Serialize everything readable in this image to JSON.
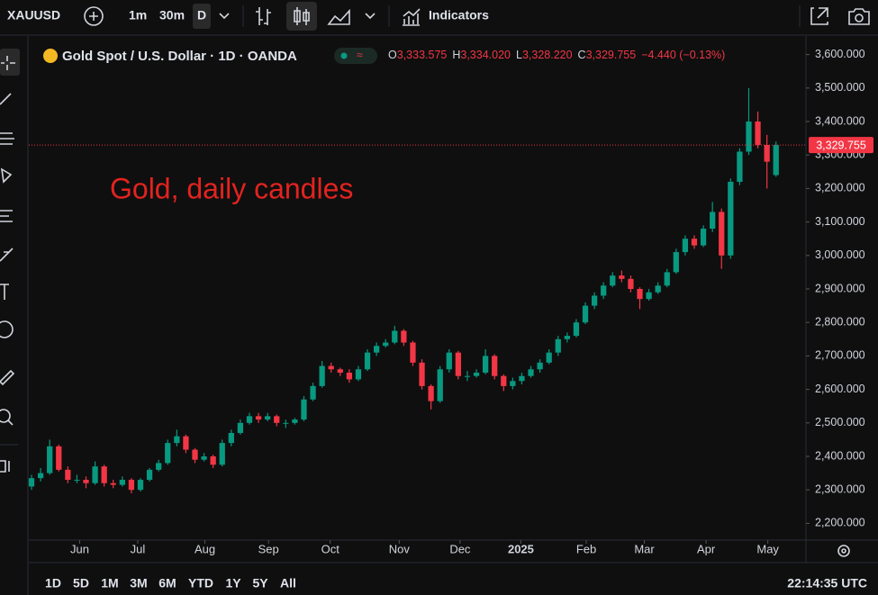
{
  "toolbar": {
    "symbol": "XAUUSD",
    "intervals": [
      "1m",
      "30m",
      "D"
    ],
    "indicators": "Indicators"
  },
  "legend": {
    "title": "Gold Spot / U.S. Dollar · 1D · OANDA",
    "ohlc": [
      {
        "key": "O",
        "value": "3,333.575"
      },
      {
        "key": "H",
        "value": "3,334.020"
      },
      {
        "key": "L",
        "value": "3,328.220"
      },
      {
        "key": "C",
        "value": "3,329.755"
      }
    ],
    "change": "−4.440 (−0.13%)"
  },
  "chart_data": {
    "type": "candlestick",
    "annotation": "Gold, daily candles",
    "up_color": "#089981",
    "down_color": "#f23645",
    "annotation_color": "#e3231f",
    "xlim": [
      -0.3,
      85.3
    ],
    "xticks": [
      {
        "value": 5.3,
        "label": "Jun"
      },
      {
        "value": 11.7,
        "label": "Jul"
      },
      {
        "value": 19.1,
        "label": "Aug"
      },
      {
        "value": 26.1,
        "label": "Sep"
      },
      {
        "value": 32.9,
        "label": "Oct"
      },
      {
        "value": 40.5,
        "label": "Nov"
      },
      {
        "value": 47.2,
        "label": "Dec"
      },
      {
        "value": 53.9,
        "label": "2025"
      },
      {
        "value": 61.1,
        "label": "Feb"
      },
      {
        "value": 67.5,
        "label": "Mar"
      },
      {
        "value": 74.3,
        "label": "Apr"
      },
      {
        "value": 81.1,
        "label": "May"
      }
    ],
    "ylim": [
      2150,
      3650
    ],
    "yticks": [
      {
        "value": 2200,
        "label": "2,200.000"
      },
      {
        "value": 2300,
        "label": "2,300.000"
      },
      {
        "value": 2400,
        "label": "2,400.000"
      },
      {
        "value": 2500,
        "label": "2,500.000"
      },
      {
        "value": 2600,
        "label": "2,600.000"
      },
      {
        "value": 2700,
        "label": "2,700.000"
      },
      {
        "value": 2800,
        "label": "2,800.000"
      },
      {
        "value": 2900,
        "label": "2,900.000"
      },
      {
        "value": 3000,
        "label": "3,000.000"
      },
      {
        "value": 3100,
        "label": "3,100.000"
      },
      {
        "value": 3200,
        "label": "3,200.000"
      },
      {
        "value": 3300,
        "label": "3,300.000"
      },
      {
        "value": 3400,
        "label": "3,400.000"
      },
      {
        "value": 3500,
        "label": "3,500.000"
      },
      {
        "value": 3600,
        "label": "3,600.000"
      }
    ],
    "last_price": {
      "value": 3329.755,
      "label": "3,329.755"
    },
    "open": [
      2310,
      2335,
      2350,
      2430,
      2360,
      2330,
      2330,
      2320,
      2370,
      2320,
      2315,
      2330,
      2300,
      2330,
      2360,
      2380,
      2440,
      2460,
      2420,
      2390,
      2400,
      2375,
      2440,
      2470,
      2500,
      2520,
      2510,
      2520,
      2500,
      2500,
      2510,
      2570,
      2610,
      2670,
      2660,
      2650,
      2630,
      2660,
      2710,
      2730,
      2740,
      2775,
      2740,
      2680,
      2610,
      2565,
      2660,
      2710,
      2640,
      2640,
      2650,
      2700,
      2640,
      2610,
      2625,
      2640,
      2660,
      2680,
      2710,
      2750,
      2760,
      2800,
      2850,
      2880,
      2910,
      2940,
      2930,
      2900,
      2870,
      2890,
      2910,
      2950,
      3010,
      3050,
      3030,
      3080,
      3130,
      3000,
      3220,
      3310,
      3400,
      3330,
      3240
    ],
    "high": [
      2345,
      2365,
      2450,
      2435,
      2370,
      2345,
      2340,
      2385,
      2375,
      2330,
      2340,
      2335,
      2335,
      2365,
      2390,
      2450,
      2480,
      2465,
      2425,
      2410,
      2405,
      2450,
      2480,
      2510,
      2530,
      2530,
      2530,
      2525,
      2510,
      2515,
      2580,
      2620,
      2685,
      2680,
      2665,
      2660,
      2670,
      2720,
      2740,
      2750,
      2790,
      2780,
      2745,
      2690,
      2615,
      2670,
      2720,
      2715,
      2655,
      2660,
      2720,
      2705,
      2645,
      2635,
      2650,
      2670,
      2690,
      2720,
      2760,
      2770,
      2810,
      2860,
      2890,
      2920,
      2950,
      2955,
      2940,
      2905,
      2900,
      2920,
      2960,
      3020,
      3060,
      3060,
      3090,
      3160,
      3140,
      3230,
      3320,
      3500,
      3430,
      3360,
      3340
    ],
    "low": [
      2300,
      2325,
      2345,
      2355,
      2320,
      2320,
      2305,
      2315,
      2310,
      2305,
      2310,
      2290,
      2295,
      2325,
      2355,
      2375,
      2430,
      2410,
      2380,
      2385,
      2365,
      2370,
      2430,
      2465,
      2495,
      2500,
      2505,
      2490,
      2485,
      2495,
      2505,
      2565,
      2605,
      2650,
      2640,
      2620,
      2625,
      2655,
      2700,
      2725,
      2735,
      2730,
      2670,
      2600,
      2540,
      2560,
      2650,
      2630,
      2625,
      2635,
      2645,
      2630,
      2595,
      2600,
      2615,
      2635,
      2650,
      2675,
      2700,
      2740,
      2755,
      2795,
      2840,
      2870,
      2905,
      2920,
      2890,
      2840,
      2865,
      2885,
      2905,
      2945,
      3000,
      3020,
      3025,
      3070,
      2960,
      2990,
      3210,
      3300,
      3320,
      3200,
      3235
    ],
    "close": [
      2335,
      2350,
      2430,
      2360,
      2330,
      2330,
      2320,
      2370,
      2320,
      2315,
      2330,
      2300,
      2330,
      2360,
      2380,
      2440,
      2460,
      2420,
      2390,
      2400,
      2375,
      2440,
      2470,
      2500,
      2520,
      2510,
      2520,
      2500,
      2500,
      2510,
      2570,
      2610,
      2670,
      2660,
      2650,
      2630,
      2660,
      2710,
      2730,
      2740,
      2775,
      2740,
      2680,
      2610,
      2565,
      2660,
      2710,
      2640,
      2640,
      2650,
      2700,
      2640,
      2610,
      2625,
      2640,
      2660,
      2680,
      2710,
      2750,
      2760,
      2800,
      2850,
      2880,
      2910,
      2940,
      2930,
      2900,
      2870,
      2890,
      2910,
      2950,
      3010,
      3050,
      3030,
      3080,
      3130,
      3000,
      3220,
      3310,
      3400,
      3330,
      3280,
      3330
    ]
  },
  "bottom_bar": {
    "ranges": [
      "1D",
      "5D",
      "1M",
      "3M",
      "6M",
      "YTD",
      "1Y",
      "5Y",
      "All"
    ],
    "clock": "22:14:35 UTC"
  }
}
